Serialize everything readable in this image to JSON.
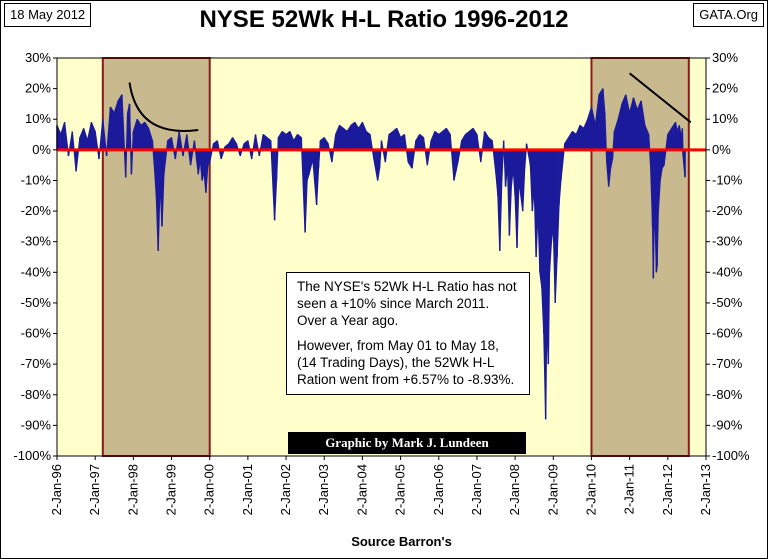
{
  "header": {
    "date": "18 May 2012",
    "site": "GATA.Org",
    "title": "NYSE 52Wk H-L Ratio 1996-2012"
  },
  "chart_data": {
    "type": "bar",
    "title": "NYSE 52Wk H-L Ratio 1996-2012",
    "xlabel": "Source Barron's",
    "ylabel": "",
    "ylim": [
      -100,
      30
    ],
    "xlim": [
      1996.0,
      2013.0
    ],
    "grid": false,
    "y_ticks": [
      "30%",
      "20%",
      "10%",
      "0%",
      "-10%",
      "-20%",
      "-30%",
      "-40%",
      "-50%",
      "-60%",
      "-70%",
      "-80%",
      "-90%",
      "-100%"
    ],
    "x_ticks": [
      "2-Jan-96",
      "2-Jan-97",
      "2-Jan-98",
      "2-Jan-99",
      "2-Jan-00",
      "2-Jan-01",
      "2-Jan-02",
      "2-Jan-03",
      "2-Jan-04",
      "2-Jan-05",
      "2-Jan-06",
      "2-Jan-07",
      "2-Jan-08",
      "2-Jan-09",
      "2-Jan-10",
      "2-Jan-11",
      "2-Jan-12",
      "2-Jan-13"
    ],
    "shaded_periods": [
      {
        "start": 1997.2,
        "end": 2000.0
      },
      {
        "start": 2010.0,
        "end": 2012.55
      }
    ],
    "reference_line": {
      "y": 0,
      "color": "#ff0000"
    },
    "trend_lines": [
      {
        "x1": 2011.0,
        "y1": 25,
        "x2": 2012.6,
        "y2": 9
      }
    ],
    "arc_annotation": {
      "x_start": 1997.9,
      "y_start": 22,
      "x_end": 1999.7,
      "y_end": 6.5
    },
    "series": [
      {
        "name": "NYSE 52Wk H-L Ratio",
        "color": "#1a1a9a",
        "points": [
          [
            1996.0,
            8
          ],
          [
            1996.1,
            5
          ],
          [
            1996.2,
            9
          ],
          [
            1996.3,
            -2
          ],
          [
            1996.4,
            6
          ],
          [
            1996.5,
            -7
          ],
          [
            1996.6,
            4
          ],
          [
            1996.7,
            7
          ],
          [
            1996.8,
            3
          ],
          [
            1996.9,
            9
          ],
          [
            1997.0,
            6
          ],
          [
            1997.1,
            -3
          ],
          [
            1997.2,
            10
          ],
          [
            1997.3,
            -2
          ],
          [
            1997.4,
            14
          ],
          [
            1997.5,
            12
          ],
          [
            1997.6,
            16
          ],
          [
            1997.7,
            18
          ],
          [
            1997.8,
            -9
          ],
          [
            1997.85,
            12
          ],
          [
            1997.9,
            15
          ],
          [
            1997.95,
            -8
          ],
          [
            1998.0,
            6
          ],
          [
            1998.1,
            10
          ],
          [
            1998.2,
            8
          ],
          [
            1998.3,
            9
          ],
          [
            1998.4,
            7
          ],
          [
            1998.5,
            3
          ],
          [
            1998.55,
            -5
          ],
          [
            1998.6,
            -15
          ],
          [
            1998.65,
            -33
          ],
          [
            1998.7,
            -10
          ],
          [
            1998.75,
            -25
          ],
          [
            1998.8,
            -8
          ],
          [
            1998.9,
            3
          ],
          [
            1999.0,
            4
          ],
          [
            1999.1,
            -3
          ],
          [
            1999.2,
            6
          ],
          [
            1999.3,
            -2
          ],
          [
            1999.4,
            5
          ],
          [
            1999.5,
            -5
          ],
          [
            1999.6,
            3
          ],
          [
            1999.7,
            -8
          ],
          [
            1999.75,
            -3
          ],
          [
            1999.8,
            -10
          ],
          [
            1999.85,
            -7
          ],
          [
            1999.9,
            -14
          ],
          [
            1999.95,
            -5
          ],
          [
            2000.0,
            -4
          ],
          [
            2000.1,
            2
          ],
          [
            2000.2,
            3
          ],
          [
            2000.3,
            -3
          ],
          [
            2000.4,
            1
          ],
          [
            2000.5,
            2
          ],
          [
            2000.6,
            4
          ],
          [
            2000.7,
            2
          ],
          [
            2000.8,
            -2
          ],
          [
            2000.9,
            2
          ],
          [
            2001.0,
            3
          ],
          [
            2001.1,
            -3
          ],
          [
            2001.2,
            5
          ],
          [
            2001.3,
            -2
          ],
          [
            2001.4,
            5
          ],
          [
            2001.5,
            4
          ],
          [
            2001.6,
            3
          ],
          [
            2001.7,
            -23
          ],
          [
            2001.75,
            -10
          ],
          [
            2001.8,
            4
          ],
          [
            2001.9,
            6
          ],
          [
            2002.0,
            5
          ],
          [
            2002.1,
            6
          ],
          [
            2002.2,
            3
          ],
          [
            2002.3,
            5
          ],
          [
            2002.4,
            4
          ],
          [
            2002.5,
            -27
          ],
          [
            2002.55,
            -10
          ],
          [
            2002.6,
            -8
          ],
          [
            2002.7,
            -3
          ],
          [
            2002.8,
            -18
          ],
          [
            2002.85,
            -6
          ],
          [
            2002.9,
            3
          ],
          [
            2003.0,
            4
          ],
          [
            2003.1,
            2
          ],
          [
            2003.2,
            -4
          ],
          [
            2003.3,
            5
          ],
          [
            2003.4,
            8
          ],
          [
            2003.5,
            7
          ],
          [
            2003.6,
            6
          ],
          [
            2003.7,
            8
          ],
          [
            2003.8,
            9
          ],
          [
            2003.9,
            7
          ],
          [
            2004.0,
            9
          ],
          [
            2004.1,
            6
          ],
          [
            2004.2,
            5
          ],
          [
            2004.3,
            -3
          ],
          [
            2004.4,
            -10
          ],
          [
            2004.45,
            -6
          ],
          [
            2004.5,
            3
          ],
          [
            2004.6,
            -4
          ],
          [
            2004.7,
            5
          ],
          [
            2004.8,
            6
          ],
          [
            2004.9,
            7
          ],
          [
            2005.0,
            4
          ],
          [
            2005.1,
            5
          ],
          [
            2005.2,
            -4
          ],
          [
            2005.3,
            -6
          ],
          [
            2005.4,
            3
          ],
          [
            2005.5,
            5
          ],
          [
            2005.6,
            4
          ],
          [
            2005.7,
            -5
          ],
          [
            2005.8,
            3
          ],
          [
            2005.9,
            6
          ],
          [
            2006.0,
            5
          ],
          [
            2006.1,
            6
          ],
          [
            2006.2,
            7
          ],
          [
            2006.3,
            5
          ],
          [
            2006.4,
            -10
          ],
          [
            2006.45,
            -7
          ],
          [
            2006.5,
            -4
          ],
          [
            2006.6,
            3
          ],
          [
            2006.7,
            5
          ],
          [
            2006.8,
            6
          ],
          [
            2006.9,
            7
          ],
          [
            2007.0,
            5
          ],
          [
            2007.1,
            -4
          ],
          [
            2007.2,
            6
          ],
          [
            2007.3,
            4
          ],
          [
            2007.4,
            3
          ],
          [
            2007.5,
            -8
          ],
          [
            2007.55,
            -15
          ],
          [
            2007.6,
            -33
          ],
          [
            2007.65,
            -10
          ],
          [
            2007.7,
            3
          ],
          [
            2007.75,
            -12
          ],
          [
            2007.8,
            -5
          ],
          [
            2007.85,
            -28
          ],
          [
            2007.9,
            -12
          ],
          [
            2007.95,
            -6
          ],
          [
            2008.0,
            -15
          ],
          [
            2008.05,
            -32
          ],
          [
            2008.1,
            -10
          ],
          [
            2008.2,
            -20
          ],
          [
            2008.25,
            -6
          ],
          [
            2008.3,
            2
          ],
          [
            2008.4,
            -5
          ],
          [
            2008.45,
            -20
          ],
          [
            2008.5,
            -12
          ],
          [
            2008.55,
            -35
          ],
          [
            2008.6,
            -20
          ],
          [
            2008.65,
            -40
          ],
          [
            2008.7,
            -45
          ],
          [
            2008.75,
            -60
          ],
          [
            2008.8,
            -88
          ],
          [
            2008.83,
            -55
          ],
          [
            2008.87,
            -70
          ],
          [
            2008.9,
            -40
          ],
          [
            2008.95,
            -30
          ],
          [
            2009.0,
            -25
          ],
          [
            2009.05,
            -50
          ],
          [
            2009.1,
            -35
          ],
          [
            2009.15,
            -18
          ],
          [
            2009.2,
            -10
          ],
          [
            2009.3,
            2
          ],
          [
            2009.4,
            4
          ],
          [
            2009.5,
            6
          ],
          [
            2009.6,
            5
          ],
          [
            2009.7,
            8
          ],
          [
            2009.8,
            7
          ],
          [
            2009.9,
            10
          ],
          [
            2010.0,
            14
          ],
          [
            2010.1,
            8
          ],
          [
            2010.2,
            18
          ],
          [
            2010.3,
            20
          ],
          [
            2010.35,
            12
          ],
          [
            2010.4,
            -4
          ],
          [
            2010.45,
            -12
          ],
          [
            2010.5,
            -6
          ],
          [
            2010.55,
            -3
          ],
          [
            2010.6,
            6
          ],
          [
            2010.7,
            10
          ],
          [
            2010.8,
            15
          ],
          [
            2010.9,
            18
          ],
          [
            2011.0,
            12
          ],
          [
            2011.1,
            17
          ],
          [
            2011.2,
            13
          ],
          [
            2011.3,
            16
          ],
          [
            2011.4,
            8
          ],
          [
            2011.5,
            5
          ],
          [
            2011.55,
            -5
          ],
          [
            2011.6,
            -25
          ],
          [
            2011.62,
            -42
          ],
          [
            2011.65,
            -15
          ],
          [
            2011.7,
            -40
          ],
          [
            2011.72,
            -38
          ],
          [
            2011.75,
            -20
          ],
          [
            2011.8,
            -10
          ],
          [
            2011.85,
            -6
          ],
          [
            2011.9,
            -5
          ],
          [
            2012.0,
            5
          ],
          [
            2012.1,
            7
          ],
          [
            2012.2,
            9
          ],
          [
            2012.25,
            6
          ],
          [
            2012.3,
            8
          ],
          [
            2012.35,
            4
          ],
          [
            2012.38,
            7
          ],
          [
            2012.4,
            -2
          ],
          [
            2012.45,
            -8.93
          ]
        ]
      }
    ]
  },
  "annotation": {
    "paragraph1": "The NYSE's 52Wk H-L Ratio has not seen a +10% since March 2011.  Over a Year ago.",
    "paragraph2": "However, from May 01 to May 18, (14 Trading Days), the 52Wk H-L Ration went from +6.57% to -8.93%."
  },
  "credit": "Graphic by Mark J. Lundeen"
}
